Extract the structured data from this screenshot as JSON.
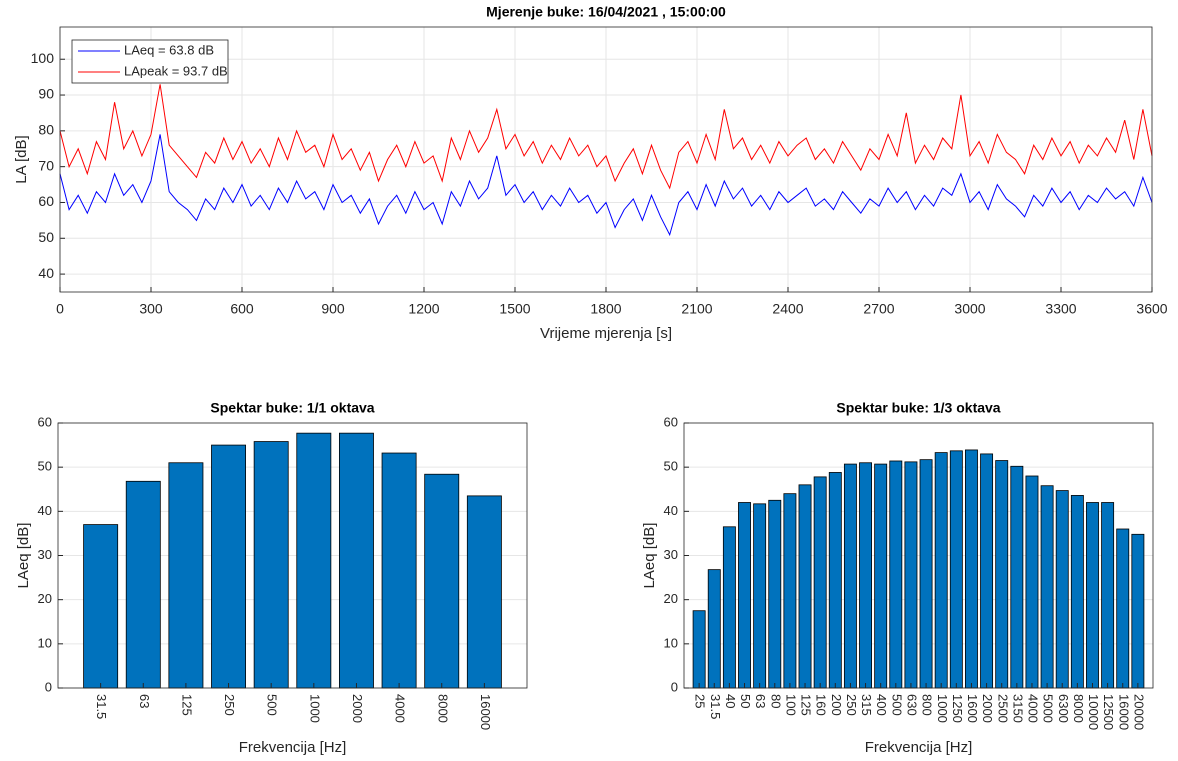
{
  "chart_data": [
    {
      "type": "line",
      "title": "Mjerenje buke: 16/04/2021 ,  15:00:00",
      "x_label": "Vrijeme mjerenja [s]",
      "y_label": "LA [dB]",
      "x": [
        0,
        30,
        60,
        90,
        120,
        150,
        180,
        210,
        240,
        270,
        300,
        330,
        360,
        390,
        420,
        450,
        480,
        510,
        540,
        570,
        600,
        630,
        660,
        690,
        720,
        750,
        780,
        810,
        840,
        870,
        900,
        930,
        960,
        990,
        1020,
        1050,
        1080,
        1110,
        1140,
        1170,
        1200,
        1230,
        1260,
        1290,
        1320,
        1350,
        1380,
        1410,
        1440,
        1470,
        1500,
        1530,
        1560,
        1590,
        1620,
        1650,
        1680,
        1710,
        1740,
        1770,
        1800,
        1830,
        1860,
        1890,
        1920,
        1950,
        1980,
        2010,
        2040,
        2070,
        2100,
        2130,
        2160,
        2190,
        2220,
        2250,
        2280,
        2310,
        2340,
        2370,
        2400,
        2430,
        2460,
        2490,
        2520,
        2550,
        2580,
        2610,
        2640,
        2670,
        2700,
        2730,
        2760,
        2790,
        2820,
        2850,
        2880,
        2910,
        2940,
        2970,
        3000,
        3030,
        3060,
        3090,
        3120,
        3150,
        3180,
        3210,
        3240,
        3270,
        3300,
        3330,
        3360,
        3390,
        3420,
        3450,
        3480,
        3510,
        3540,
        3570,
        3600
      ],
      "series": [
        {
          "name": "LAeq = 63.8 dB",
          "color": "#0000ff",
          "values": [
            68,
            58,
            62,
            57,
            63,
            60,
            68,
            62,
            65,
            60,
            66,
            79,
            63,
            60,
            58,
            55,
            61,
            58,
            64,
            60,
            65,
            59,
            62,
            58,
            64,
            60,
            66,
            61,
            63,
            58,
            65,
            60,
            62,
            57,
            61,
            54,
            59,
            62,
            57,
            63,
            58,
            60,
            54,
            63,
            59,
            66,
            61,
            64,
            73,
            62,
            65,
            60,
            63,
            58,
            62,
            59,
            64,
            60,
            62,
            57,
            60,
            53,
            58,
            61,
            55,
            62,
            56,
            51,
            60,
            63,
            58,
            65,
            59,
            66,
            61,
            64,
            59,
            62,
            58,
            63,
            60,
            62,
            64,
            59,
            61,
            58,
            63,
            60,
            57,
            61,
            59,
            64,
            60,
            63,
            58,
            62,
            59,
            64,
            62,
            68,
            60,
            63,
            58,
            65,
            61,
            59,
            56,
            62,
            59,
            64,
            60,
            63,
            58,
            62,
            60,
            64,
            61,
            63,
            59,
            67,
            60
          ]
        },
        {
          "name": "LApeak = 93.7 dB",
          "color": "#ff0000",
          "values": [
            80,
            70,
            75,
            68,
            77,
            72,
            88,
            75,
            80,
            73,
            79,
            93,
            76,
            73,
            70,
            67,
            74,
            71,
            78,
            72,
            77,
            71,
            75,
            70,
            78,
            72,
            80,
            74,
            76,
            70,
            79,
            72,
            75,
            69,
            74,
            66,
            72,
            76,
            70,
            77,
            71,
            73,
            66,
            78,
            72,
            80,
            74,
            78,
            86,
            75,
            79,
            73,
            77,
            71,
            76,
            72,
            78,
            73,
            76,
            70,
            73,
            66,
            71,
            75,
            68,
            76,
            69,
            64,
            74,
            77,
            71,
            79,
            72,
            86,
            75,
            78,
            72,
            76,
            71,
            77,
            73,
            76,
            78,
            72,
            75,
            71,
            77,
            73,
            69,
            75,
            72,
            79,
            73,
            85,
            71,
            76,
            72,
            78,
            75,
            90,
            73,
            77,
            71,
            79,
            74,
            72,
            68,
            76,
            72,
            78,
            73,
            77,
            71,
            76,
            73,
            78,
            74,
            83,
            72,
            86,
            73
          ]
        }
      ],
      "xlim": [
        0,
        3600
      ],
      "xticks": [
        0,
        300,
        600,
        900,
        1200,
        1500,
        1800,
        2100,
        2400,
        2700,
        3000,
        3300,
        3600
      ],
      "ylim": [
        35,
        109
      ],
      "yticks": [
        40,
        50,
        60,
        70,
        80,
        90,
        100
      ],
      "grid": true,
      "legend": "upper left"
    },
    {
      "type": "bar",
      "title": "Spektar buke: 1/1 oktava",
      "x_label": "Frekvencija [Hz]",
      "y_label": "LAeq [dB]",
      "categories": [
        "31.5",
        "63",
        "125",
        "250",
        "500",
        "1000",
        "2000",
        "4000",
        "8000",
        "16000"
      ],
      "values": [
        37,
        46.8,
        51,
        55,
        55.8,
        57.7,
        57.7,
        53.2,
        48.4,
        43.5
      ],
      "color": "#0072bd",
      "ylim": [
        0,
        60
      ],
      "yticks": [
        0,
        10,
        20,
        30,
        40,
        50,
        60
      ],
      "grid": true
    },
    {
      "type": "bar",
      "title": "Spektar buke: 1/3 oktava",
      "x_label": "Frekvencija [Hz]",
      "y_label": "LAeq [dB]",
      "categories": [
        "25",
        "31.5",
        "40",
        "50",
        "63",
        "80",
        "100",
        "125",
        "160",
        "200",
        "250",
        "315",
        "400",
        "500",
        "630",
        "800",
        "1000",
        "1250",
        "1600",
        "2000",
        "2500",
        "3150",
        "4000",
        "5000",
        "6300",
        "8000",
        "10000",
        "12500",
        "16000",
        "20000"
      ],
      "values": [
        17.5,
        26.8,
        36.5,
        42,
        41.7,
        42.5,
        44,
        46,
        47.8,
        48.8,
        50.7,
        51,
        50.7,
        51.4,
        51.2,
        51.7,
        53.3,
        53.7,
        53.9,
        53,
        51.5,
        50.2,
        48,
        45.8,
        44.7,
        43.6,
        42,
        42,
        36,
        34.8
      ],
      "color": "#0072bd",
      "ylim": [
        0,
        60
      ],
      "yticks": [
        0,
        10,
        20,
        30,
        40,
        50,
        60
      ],
      "grid": true
    }
  ]
}
